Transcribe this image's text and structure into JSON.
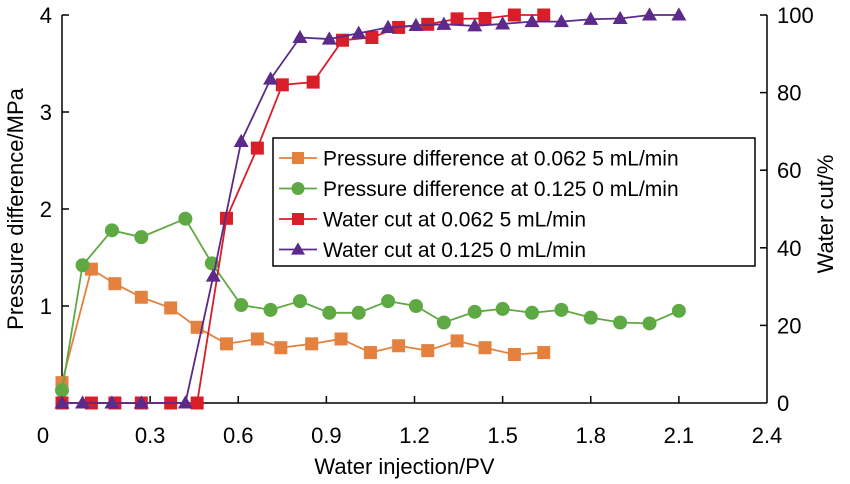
{
  "chart_data": {
    "type": "line",
    "title": "",
    "xlabel": "Water injection/PV",
    "ylabel": "Pressure difference/MPa",
    "y2label": "Water cut/%",
    "xlim": [
      0,
      2.4
    ],
    "ylim": [
      0,
      4
    ],
    "y2lim": [
      0,
      100
    ],
    "xticks": [
      "0",
      "0.3",
      "0.6",
      "0.9",
      "1.2",
      "1.5",
      "1.8",
      "2.1",
      "2.4"
    ],
    "xtick_values": [
      0,
      0.3,
      0.6,
      0.9,
      1.2,
      1.5,
      1.8,
      2.1,
      2.4
    ],
    "yticks": [
      "1",
      "2",
      "3",
      "4"
    ],
    "ytick_values": [
      1,
      2,
      3,
      4
    ],
    "y2ticks": [
      "0",
      "20",
      "40",
      "60",
      "80",
      "100"
    ],
    "y2tick_values": [
      0,
      20,
      40,
      60,
      80,
      100
    ],
    "grid": false,
    "legend_position": "center-right",
    "series": [
      {
        "name": "Pressure difference at 0.062 5 mL/min",
        "axis": "left",
        "marker": "square",
        "color": "#E4813F",
        "x": [
          0.0,
          0.1,
          0.18,
          0.27,
          0.37,
          0.46,
          0.56,
          0.665,
          0.745,
          0.85,
          0.95,
          1.05,
          1.146,
          1.245,
          1.345,
          1.44,
          1.54,
          1.64
        ],
        "y": [
          0.21,
          1.38,
          1.23,
          1.09,
          0.98,
          0.78,
          0.61,
          0.66,
          0.57,
          0.61,
          0.66,
          0.52,
          0.59,
          0.54,
          0.64,
          0.57,
          0.5,
          0.52
        ]
      },
      {
        "name": "Pressure difference at 0.125 0 mL/min",
        "axis": "left",
        "marker": "circle",
        "color": "#5EA944",
        "x": [
          0.0,
          0.07,
          0.17,
          0.27,
          0.42,
          0.51,
          0.61,
          0.71,
          0.81,
          0.91,
          1.01,
          1.11,
          1.205,
          1.3,
          1.405,
          1.5,
          1.6,
          1.7,
          1.8,
          1.9,
          2.0,
          2.1
        ],
        "y": [
          0.13,
          1.42,
          1.78,
          1.71,
          1.9,
          1.44,
          1.01,
          0.96,
          1.05,
          0.93,
          0.93,
          1.05,
          1.0,
          0.83,
          0.94,
          0.97,
          0.93,
          0.96,
          0.88,
          0.83,
          0.82,
          0.95
        ]
      },
      {
        "name": "Water cut at 0.062 5 mL/min",
        "axis": "right",
        "marker": "square",
        "color": "#D81E28",
        "x": [
          0.0,
          0.1,
          0.18,
          0.27,
          0.37,
          0.46,
          0.56,
          0.665,
          0.75,
          0.855,
          0.955,
          1.055,
          1.146,
          1.245,
          1.345,
          1.44,
          1.54,
          1.64
        ],
        "y": [
          0,
          0,
          0,
          0,
          0,
          0,
          47.6,
          65.7,
          82.0,
          82.7,
          93.5,
          94.2,
          96.8,
          97.6,
          99.0,
          99.1,
          100,
          100
        ]
      },
      {
        "name": "Water cut at 0.125 0 mL/min",
        "axis": "right",
        "marker": "triangle",
        "color": "#5B2A8A",
        "x": [
          0.0,
          0.07,
          0.17,
          0.27,
          0.42,
          0.515,
          0.61,
          0.71,
          0.81,
          0.91,
          1.01,
          1.11,
          1.205,
          1.3,
          1.405,
          1.5,
          1.6,
          1.7,
          1.8,
          1.9,
          2.0,
          2.1
        ],
        "y": [
          0,
          0,
          0,
          0,
          0,
          32.7,
          67.4,
          83.5,
          94.2,
          93.8,
          95.3,
          96.8,
          97.3,
          97.6,
          97.2,
          97.7,
          98.3,
          98.3,
          98.9,
          99.1,
          100,
          100
        ]
      }
    ]
  }
}
